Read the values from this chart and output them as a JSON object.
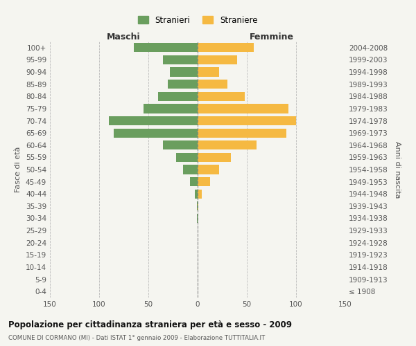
{
  "age_groups": [
    "0-4",
    "5-9",
    "10-14",
    "15-19",
    "20-24",
    "25-29",
    "30-34",
    "35-39",
    "40-44",
    "45-49",
    "50-54",
    "55-59",
    "60-64",
    "65-69",
    "70-74",
    "75-79",
    "80-84",
    "85-89",
    "90-94",
    "95-99",
    "100+"
  ],
  "birth_years": [
    "2004-2008",
    "1999-2003",
    "1994-1998",
    "1989-1993",
    "1984-1988",
    "1979-1983",
    "1974-1978",
    "1969-1973",
    "1964-1968",
    "1959-1963",
    "1954-1958",
    "1949-1953",
    "1944-1948",
    "1939-1943",
    "1934-1938",
    "1929-1933",
    "1924-1928",
    "1919-1923",
    "1914-1918",
    "1909-1913",
    "≤ 1908"
  ],
  "maschi": [
    65,
    35,
    28,
    30,
    40,
    55,
    90,
    85,
    35,
    22,
    15,
    8,
    3,
    1,
    1,
    0,
    0,
    0,
    0,
    0,
    0
  ],
  "femmine": [
    57,
    40,
    22,
    30,
    48,
    92,
    100,
    90,
    60,
    34,
    22,
    13,
    4,
    1,
    0,
    0,
    0,
    0,
    0,
    0,
    0
  ],
  "male_color": "#6a9e5e",
  "female_color": "#f5b942",
  "grid_color": "#bbbbbb",
  "center_line_color": "#888888",
  "title": "Popolazione per cittadinanza straniera per età e sesso - 2009",
  "subtitle": "COMUNE DI CORMANO (MI) - Dati ISTAT 1° gennaio 2009 - Elaborazione TUTTITALIA.IT",
  "xlabel_left": "Maschi",
  "xlabel_right": "Femmine",
  "ylabel_left": "Fasce di età",
  "ylabel_right": "Anni di nascita",
  "legend_male": "Stranieri",
  "legend_female": "Straniere",
  "xlim": 150,
  "bg_color": "#f5f5f0"
}
